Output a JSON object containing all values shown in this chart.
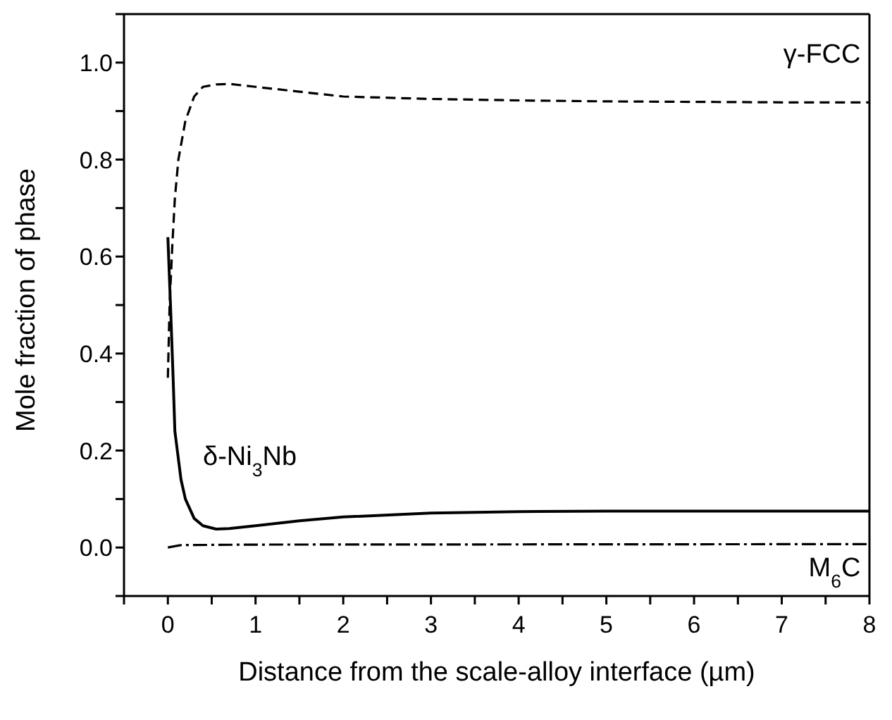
{
  "chart_data": {
    "type": "line",
    "xlabel": "Distance from the scale-alloy interface (µm)",
    "ylabel": "Mole fraction of phase",
    "xlim": [
      -0.5,
      8
    ],
    "xticks": [
      {
        "value": -0.5,
        "label": null
      },
      0,
      {
        "value": 0.5,
        "label": null
      },
      1,
      {
        "value": 1.5,
        "label": null
      },
      2,
      {
        "value": 2.5,
        "label": null
      },
      3,
      {
        "value": 3.5,
        "label": null
      },
      4,
      {
        "value": 4.5,
        "label": null
      },
      5,
      {
        "value": 5.5,
        "label": null
      },
      6,
      {
        "value": 6.5,
        "label": null
      },
      7,
      {
        "value": 7.5,
        "label": null
      },
      8
    ],
    "ylim": [
      -0.1,
      1.1
    ],
    "yticks": [
      {
        "value": -0.1,
        "label": null
      },
      {
        "value": 0,
        "label": "0.0"
      },
      {
        "value": 0.1,
        "label": null
      },
      {
        "value": 0.2,
        "label": "0.2"
      },
      {
        "value": 0.3,
        "label": null
      },
      {
        "value": 0.4,
        "label": "0.4"
      },
      {
        "value": 0.5,
        "label": null
      },
      {
        "value": 0.6,
        "label": "0.6"
      },
      {
        "value": 0.7,
        "label": null
      },
      {
        "value": 0.8,
        "label": "0.8"
      },
      {
        "value": 0.9,
        "label": null
      },
      {
        "value": 1.0,
        "label": "1.0"
      },
      {
        "value": 1.1,
        "label": null
      }
    ],
    "legend": false,
    "marker": "none",
    "series": [
      {
        "name": "γ-FCC",
        "color": "#000000",
        "line_style": "dashed",
        "x": [
          0,
          0.02,
          0.05,
          0.08,
          0.12,
          0.2,
          0.3,
          0.4,
          0.55,
          0.7,
          1,
          1.5,
          2,
          3,
          4,
          5,
          6,
          7,
          8
        ],
        "values": [
          0.35,
          0.5,
          0.62,
          0.72,
          0.8,
          0.88,
          0.93,
          0.95,
          0.955,
          0.956,
          0.95,
          0.94,
          0.93,
          0.925,
          0.922,
          0.92,
          0.919,
          0.918,
          0.918
        ]
      },
      {
        "name": "δ-Ni$_{3}$Nb",
        "color": "#000000",
        "line_style": "solid",
        "x": [
          0,
          0.03,
          0.06,
          0.08,
          0.15,
          0.2,
          0.3,
          0.4,
          0.55,
          0.7,
          1,
          1.5,
          2,
          3,
          4,
          5,
          6,
          8
        ],
        "values": [
          0.64,
          0.5,
          0.35,
          0.24,
          0.14,
          0.1,
          0.06,
          0.045,
          0.038,
          0.039,
          0.045,
          0.055,
          0.063,
          0.071,
          0.074,
          0.075,
          0.075,
          0.075
        ]
      },
      {
        "name": "M$_{6}$C",
        "color": "#000000",
        "line_style": "dotted",
        "x": [
          0,
          0.15,
          1,
          8
        ],
        "values": [
          0,
          0.005,
          0.006,
          0.007
        ]
      }
    ]
  }
}
